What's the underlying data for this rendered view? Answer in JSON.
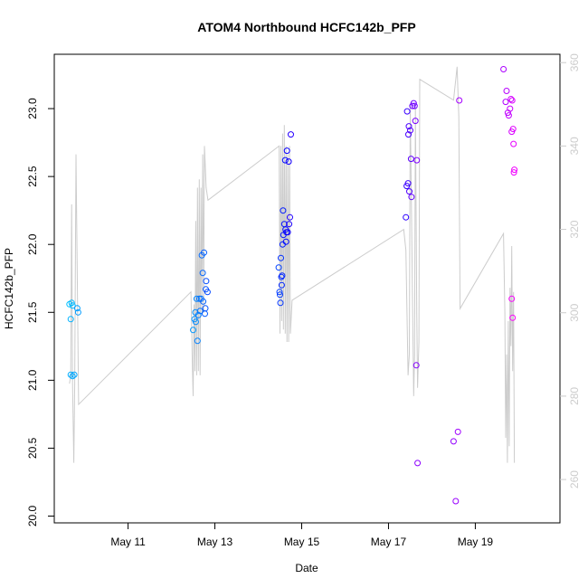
{
  "chart_data": {
    "type": "scatter",
    "title": "ATOM4 Northbound HCFC142b_PFP",
    "xlabel": "Date",
    "ylabel": "HCFC142b_PFP",
    "x_ticks": [
      {
        "day": 11,
        "label": "May 11"
      },
      {
        "day": 13,
        "label": "May 13"
      },
      {
        "day": 15,
        "label": "May 15"
      },
      {
        "day": 17,
        "label": "May 17"
      },
      {
        "day": 19,
        "label": "May 19"
      }
    ],
    "xlim": [
      9.3,
      20.95
    ],
    "y_left": {
      "ticks": [
        "20.0",
        "20.5",
        "21.0",
        "21.5",
        "22.0",
        "22.5",
        "23.0"
      ],
      "lim": [
        19.95,
        23.4
      ]
    },
    "y_right": {
      "ticks": [
        "260",
        "280",
        "300",
        "320",
        "340",
        "360"
      ],
      "lim": [
        249.6,
        362
      ],
      "color": "#cccccc"
    },
    "grid": false,
    "legend": "none",
    "series": [
      {
        "kind": "points",
        "axis": "left",
        "marker": "open-circle",
        "color_gradient": [
          "#00bfff",
          "#0000ff",
          "#ff00ff"
        ],
        "points": [
          [
            9.65,
            21.56
          ],
          [
            9.7,
            21.57
          ],
          [
            9.72,
            21.55
          ],
          [
            9.68,
            21.45
          ],
          [
            9.68,
            21.04
          ],
          [
            9.72,
            21.03
          ],
          [
            9.76,
            21.04
          ],
          [
            9.83,
            21.53
          ],
          [
            9.85,
            21.5
          ],
          [
            12.5,
            21.37
          ],
          [
            12.53,
            21.45
          ],
          [
            12.55,
            21.5
          ],
          [
            12.56,
            21.43
          ],
          [
            12.58,
            21.6
          ],
          [
            12.6,
            21.29
          ],
          [
            12.62,
            21.48
          ],
          [
            12.64,
            21.6
          ],
          [
            12.66,
            21.51
          ],
          [
            12.68,
            21.6
          ],
          [
            12.7,
            21.92
          ],
          [
            12.72,
            21.79
          ],
          [
            12.73,
            21.58
          ],
          [
            12.75,
            21.94
          ],
          [
            12.77,
            21.49
          ],
          [
            12.78,
            21.53
          ],
          [
            12.79,
            21.67
          ],
          [
            12.8,
            21.73
          ],
          [
            12.83,
            21.65
          ],
          [
            14.47,
            21.83
          ],
          [
            14.49,
            21.65
          ],
          [
            14.5,
            21.63
          ],
          [
            14.51,
            21.57
          ],
          [
            14.52,
            21.9
          ],
          [
            14.53,
            21.76
          ],
          [
            14.54,
            21.7
          ],
          [
            14.55,
            21.77
          ],
          [
            14.56,
            22.0
          ],
          [
            14.57,
            22.25
          ],
          [
            14.58,
            22.07
          ],
          [
            14.6,
            22.15
          ],
          [
            14.62,
            22.62
          ],
          [
            14.63,
            22.11
          ],
          [
            14.64,
            22.02
          ],
          [
            14.65,
            22.09
          ],
          [
            14.66,
            22.69
          ],
          [
            14.68,
            22.09
          ],
          [
            14.7,
            22.61
          ],
          [
            14.71,
            22.15
          ],
          [
            14.73,
            22.2
          ],
          [
            14.75,
            22.81
          ],
          [
            17.4,
            22.2
          ],
          [
            17.42,
            22.43
          ],
          [
            17.43,
            22.98
          ],
          [
            17.45,
            22.45
          ],
          [
            17.46,
            22.81
          ],
          [
            17.47,
            22.87
          ],
          [
            17.48,
            22.39
          ],
          [
            17.5,
            22.84
          ],
          [
            17.52,
            22.63
          ],
          [
            17.53,
            22.35
          ],
          [
            17.55,
            23.02
          ],
          [
            17.58,
            23.04
          ],
          [
            17.6,
            23.02
          ],
          [
            17.62,
            22.91
          ],
          [
            17.65,
            22.62
          ],
          [
            17.64,
            21.11
          ],
          [
            17.67,
            20.39
          ],
          [
            18.5,
            20.55
          ],
          [
            18.55,
            20.11
          ],
          [
            18.6,
            20.62
          ],
          [
            18.63,
            23.06
          ],
          [
            19.65,
            23.29
          ],
          [
            19.7,
            23.05
          ],
          [
            19.72,
            23.13
          ],
          [
            19.75,
            22.97
          ],
          [
            19.77,
            22.95
          ],
          [
            19.8,
            23.0
          ],
          [
            19.82,
            23.07
          ],
          [
            19.84,
            22.83
          ],
          [
            19.85,
            23.06
          ],
          [
            19.87,
            22.85
          ],
          [
            19.88,
            22.74
          ],
          [
            19.89,
            22.53
          ],
          [
            19.9,
            22.55
          ],
          [
            19.84,
            21.6
          ],
          [
            19.86,
            21.46
          ]
        ]
      },
      {
        "kind": "line",
        "axis": "right",
        "color": "#cccccc",
        "points": [
          [
            9.65,
            283
          ],
          [
            9.68,
            285
          ],
          [
            9.7,
            326
          ],
          [
            9.72,
            283
          ],
          [
            9.75,
            264
          ],
          [
            9.77,
            283
          ],
          [
            9.8,
            338
          ],
          [
            9.86,
            278
          ],
          [
            12.45,
            305
          ],
          [
            12.48,
            288
          ],
          [
            12.5,
            280
          ],
          [
            12.52,
            302
          ],
          [
            12.54,
            286
          ],
          [
            12.56,
            322
          ],
          [
            12.58,
            285
          ],
          [
            12.6,
            330
          ],
          [
            12.62,
            286
          ],
          [
            12.64,
            332
          ],
          [
            12.66,
            285
          ],
          [
            12.68,
            330
          ],
          [
            12.7,
            300
          ],
          [
            12.72,
            338
          ],
          [
            12.74,
            300
          ],
          [
            12.76,
            340
          ],
          [
            12.8,
            330
          ],
          [
            12.84,
            327
          ],
          [
            14.48,
            340
          ],
          [
            14.5,
            295
          ],
          [
            14.52,
            340
          ],
          [
            14.54,
            298
          ],
          [
            14.56,
            343
          ],
          [
            14.58,
            296
          ],
          [
            14.6,
            345
          ],
          [
            14.62,
            295
          ],
          [
            14.64,
            340
          ],
          [
            14.66,
            293
          ],
          [
            14.68,
            338
          ],
          [
            14.7,
            293
          ],
          [
            14.72,
            340
          ],
          [
            14.74,
            295
          ],
          [
            14.78,
            303
          ],
          [
            17.35,
            320
          ],
          [
            17.4,
            315
          ],
          [
            17.45,
            285
          ],
          [
            17.48,
            290
          ],
          [
            17.5,
            350
          ],
          [
            17.55,
            305
          ],
          [
            17.58,
            280
          ],
          [
            17.6,
            290
          ],
          [
            17.62,
            350
          ],
          [
            17.65,
            300
          ],
          [
            17.67,
            282
          ],
          [
            17.7,
            293
          ],
          [
            17.72,
            356
          ],
          [
            18.5,
            351
          ],
          [
            18.58,
            359
          ],
          [
            18.62,
            347
          ],
          [
            18.65,
            301
          ],
          [
            19.65,
            319
          ],
          [
            19.68,
            300
          ],
          [
            19.7,
            270
          ],
          [
            19.72,
            290
          ],
          [
            19.74,
            264
          ],
          [
            19.76,
            298
          ],
          [
            19.78,
            268
          ],
          [
            19.8,
            306
          ],
          [
            19.82,
            292
          ],
          [
            19.84,
            316
          ],
          [
            19.86,
            286
          ],
          [
            19.88,
            305
          ],
          [
            19.9,
            264
          ]
        ]
      }
    ]
  }
}
